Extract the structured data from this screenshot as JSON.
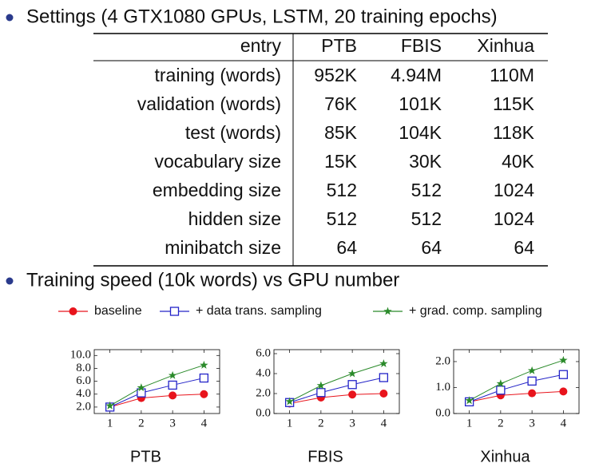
{
  "bullets": [
    "Settings (4 GTX1080 GPUs, LSTM, 20 training epochs)",
    "Training speed (10k words) vs GPU number"
  ],
  "table": {
    "header": [
      "entry",
      "PTB",
      "FBIS",
      "Xinhua"
    ],
    "rows": [
      [
        "training (words)",
        "952K",
        "4.94M",
        "110M"
      ],
      [
        "validation (words)",
        "76K",
        "101K",
        "115K"
      ],
      [
        "test (words)",
        "85K",
        "104K",
        "118K"
      ],
      [
        "vocabulary size",
        "15K",
        "30K",
        "40K"
      ],
      [
        "embedding size",
        "512",
        "512",
        "1024"
      ],
      [
        "hidden size",
        "512",
        "512",
        "1024"
      ],
      [
        "minibatch size",
        "64",
        "64",
        "64"
      ]
    ]
  },
  "legend": [
    {
      "name": "baseline",
      "color": "#e8141c",
      "marker": "circle"
    },
    {
      "name": "+ data trans. sampling",
      "color": "#2424c8",
      "marker": "square"
    },
    {
      "name": "+ grad. comp. sampling",
      "color": "#2a8a2a",
      "marker": "star"
    }
  ],
  "chart_data": [
    {
      "type": "line",
      "title": "PTB",
      "x": [
        1,
        2,
        3,
        4
      ],
      "xlim": [
        0.5,
        4.5
      ],
      "xticks": [
        1,
        2,
        3,
        4
      ],
      "ylim": [
        1.0,
        10.9
      ],
      "yticks": [
        {
          "value": 2,
          "label": "2.0"
        },
        {
          "value": 4,
          "label": "4.0"
        },
        {
          "value": 6,
          "label": "6.0"
        },
        {
          "value": 8,
          "label": "8.0"
        },
        {
          "value": 10,
          "label": "10.0"
        }
      ],
      "series": [
        {
          "values": [
            2.0,
            3.4,
            3.8,
            4.0
          ]
        },
        {
          "values": [
            2.0,
            4.2,
            5.4,
            6.5
          ]
        },
        {
          "values": [
            2.2,
            5.0,
            6.9,
            8.5
          ]
        }
      ]
    },
    {
      "type": "line",
      "title": "FBIS",
      "x": [
        1,
        2,
        3,
        4
      ],
      "xlim": [
        0.5,
        4.5
      ],
      "xticks": [
        1,
        2,
        3,
        4
      ],
      "ylim": [
        0,
        6.4
      ],
      "yticks": [
        {
          "value": 0,
          "label": "0.0"
        },
        {
          "value": 2,
          "label": "2.0"
        },
        {
          "value": 4,
          "label": "4.0"
        },
        {
          "value": 6,
          "label": "6.0"
        }
      ],
      "series": [
        {
          "values": [
            1.0,
            1.6,
            1.9,
            2.0
          ]
        },
        {
          "values": [
            1.1,
            2.1,
            2.9,
            3.6
          ]
        },
        {
          "values": [
            1.2,
            2.8,
            4.0,
            5.0
          ]
        }
      ]
    },
    {
      "type": "line",
      "title": "Xinhua",
      "x": [
        1,
        2,
        3,
        4
      ],
      "xlim": [
        0.5,
        4.5
      ],
      "xticks": [
        1,
        2,
        3,
        4
      ],
      "ylim": [
        0,
        2.46
      ],
      "yticks": [
        {
          "value": 0,
          "label": "0.0"
        },
        {
          "value": 1,
          "label": "1.0"
        },
        {
          "value": 2,
          "label": "2.0"
        }
      ],
      "series": [
        {
          "values": [
            0.45,
            0.7,
            0.78,
            0.85
          ]
        },
        {
          "values": [
            0.45,
            0.9,
            1.25,
            1.5
          ]
        },
        {
          "values": [
            0.5,
            1.15,
            1.65,
            2.05
          ]
        }
      ]
    }
  ]
}
